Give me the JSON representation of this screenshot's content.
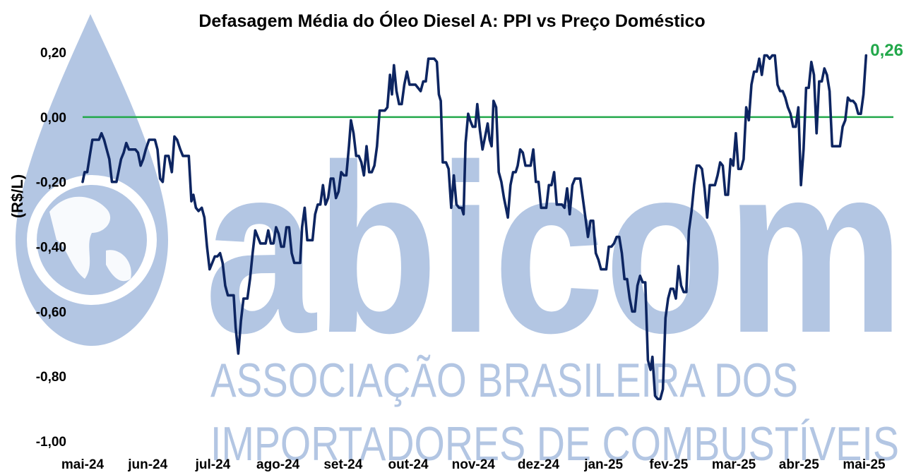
{
  "watermark": {
    "logo_text": "abicom",
    "line1": "ASSOCIAÇÃO BRASILEIRA DOS",
    "line2": "IMPORTADORES DE COMBUSTÍVEIS",
    "color": "#b3c6e3"
  },
  "chart_data": {
    "type": "line",
    "title": "Defasagem Média do Óleo Diesel A: PPI vs Preço Doméstico",
    "ylabel": "(R$/L)",
    "xlabel": "",
    "ylim": [
      -1.0,
      0.2
    ],
    "yticks": [
      0.2,
      0.0,
      -0.2,
      -0.4,
      -0.6,
      -0.8,
      -1.0
    ],
    "ytick_labels": [
      "0,20",
      "0,00",
      "-0,20",
      "-0,40",
      "-0,60",
      "-0,80",
      "-1,00"
    ],
    "xlim": [
      0,
      12.45
    ],
    "xtick_labels": [
      "mai-24",
      "jun-24",
      "jul-24",
      "ago-24",
      "set-24",
      "out-24",
      "nov-24",
      "dez-24",
      "jan-25",
      "fev-25",
      "mar-25",
      "abr-25",
      "mai-25"
    ],
    "grid": false,
    "legend": "none",
    "reference_line": {
      "y": 0.0,
      "color": "#22a84a"
    },
    "series_color": "#0d2561",
    "annotation": {
      "text": "0,26",
      "color": "#22a84a"
    },
    "series": [
      {
        "values": [
          [
            0.0,
            -0.2
          ],
          [
            0.03,
            -0.17
          ],
          [
            0.07,
            -0.17
          ],
          [
            0.11,
            -0.12
          ],
          [
            0.15,
            -0.07
          ],
          [
            0.21,
            -0.07
          ],
          [
            0.25,
            -0.07
          ],
          [
            0.29,
            -0.05
          ],
          [
            0.33,
            -0.07
          ],
          [
            0.37,
            -0.1
          ],
          [
            0.41,
            -0.13
          ],
          [
            0.45,
            -0.2
          ],
          [
            0.52,
            -0.2
          ],
          [
            0.59,
            -0.13
          ],
          [
            0.63,
            -0.11
          ],
          [
            0.67,
            -0.08
          ],
          [
            0.71,
            -0.1
          ],
          [
            0.75,
            -0.1
          ],
          [
            0.81,
            -0.1
          ],
          [
            0.85,
            -0.11
          ],
          [
            0.89,
            -0.15
          ],
          [
            0.93,
            -0.13
          ],
          [
            0.97,
            -0.1
          ],
          [
            1.02,
            -0.07
          ],
          [
            1.07,
            -0.07
          ],
          [
            1.11,
            -0.07
          ],
          [
            1.15,
            -0.1
          ],
          [
            1.19,
            -0.19
          ],
          [
            1.23,
            -0.2
          ],
          [
            1.27,
            -0.12
          ],
          [
            1.32,
            -0.12
          ],
          [
            1.37,
            -0.17
          ],
          [
            1.41,
            -0.06
          ],
          [
            1.45,
            -0.07
          ],
          [
            1.5,
            -0.1
          ],
          [
            1.54,
            -0.12
          ],
          [
            1.58,
            -0.12
          ],
          [
            1.63,
            -0.12
          ],
          [
            1.67,
            -0.26
          ],
          [
            1.7,
            -0.24
          ],
          [
            1.74,
            -0.28
          ],
          [
            1.78,
            -0.29
          ],
          [
            1.83,
            -0.28
          ],
          [
            1.87,
            -0.31
          ],
          [
            1.91,
            -0.4
          ],
          [
            1.95,
            -0.47
          ],
          [
            1.99,
            -0.45
          ],
          [
            2.03,
            -0.43
          ],
          [
            2.07,
            -0.43
          ],
          [
            2.11,
            -0.42
          ],
          [
            2.15,
            -0.45
          ],
          [
            2.19,
            -0.52
          ],
          [
            2.23,
            -0.55
          ],
          [
            2.27,
            -0.55
          ],
          [
            2.32,
            -0.55
          ],
          [
            2.35,
            -0.65
          ],
          [
            2.39,
            -0.73
          ],
          [
            2.43,
            -0.63
          ],
          [
            2.47,
            -0.56
          ],
          [
            2.53,
            -0.56
          ],
          [
            2.57,
            -0.5
          ],
          [
            2.61,
            -0.42
          ],
          [
            2.65,
            -0.35
          ],
          [
            2.69,
            -0.37
          ],
          [
            2.73,
            -0.39
          ],
          [
            2.77,
            -0.39
          ],
          [
            2.81,
            -0.39
          ],
          [
            2.85,
            -0.35
          ],
          [
            2.89,
            -0.39
          ],
          [
            2.93,
            -0.39
          ],
          [
            2.97,
            -0.34
          ],
          [
            3.01,
            -0.36
          ],
          [
            3.05,
            -0.4
          ],
          [
            3.09,
            -0.4
          ],
          [
            3.13,
            -0.34
          ],
          [
            3.17,
            -0.34
          ],
          [
            3.21,
            -0.42
          ],
          [
            3.25,
            -0.45
          ],
          [
            3.29,
            -0.45
          ],
          [
            3.34,
            -0.45
          ],
          [
            3.37,
            -0.34
          ],
          [
            3.41,
            -0.28
          ],
          [
            3.45,
            -0.38
          ],
          [
            3.49,
            -0.38
          ],
          [
            3.53,
            -0.38
          ],
          [
            3.57,
            -0.3
          ],
          [
            3.61,
            -0.27
          ],
          [
            3.65,
            -0.27
          ],
          [
            3.69,
            -0.21
          ],
          [
            3.73,
            -0.27
          ],
          [
            3.77,
            -0.25
          ],
          [
            3.81,
            -0.19
          ],
          [
            3.85,
            -0.19
          ],
          [
            3.89,
            -0.25
          ],
          [
            3.93,
            -0.23
          ],
          [
            3.97,
            -0.17
          ],
          [
            4.01,
            -0.18
          ],
          [
            4.05,
            -0.18
          ],
          [
            4.09,
            -0.09
          ],
          [
            4.12,
            -0.01
          ],
          [
            4.16,
            -0.05
          ],
          [
            4.2,
            -0.12
          ],
          [
            4.24,
            -0.12
          ],
          [
            4.28,
            -0.14
          ],
          [
            4.32,
            -0.18
          ],
          [
            4.36,
            -0.09
          ],
          [
            4.4,
            -0.17
          ],
          [
            4.44,
            -0.17
          ],
          [
            4.48,
            -0.15
          ],
          [
            4.52,
            -0.09
          ],
          [
            4.56,
            0.02
          ],
          [
            4.6,
            0.02
          ],
          [
            4.64,
            0.02
          ],
          [
            4.68,
            0.03
          ],
          [
            4.72,
            0.13
          ],
          [
            4.75,
            0.07
          ],
          [
            4.78,
            0.16
          ],
          [
            4.82,
            0.08
          ],
          [
            4.86,
            0.04
          ],
          [
            4.9,
            0.04
          ],
          [
            4.94,
            0.1
          ],
          [
            4.98,
            0.14
          ],
          [
            5.02,
            0.1
          ],
          [
            5.06,
            0.1
          ],
          [
            5.11,
            0.1
          ],
          [
            5.15,
            0.09
          ],
          [
            5.19,
            0.08
          ],
          [
            5.23,
            0.11
          ],
          [
            5.27,
            0.11
          ],
          [
            5.31,
            0.18
          ],
          [
            5.36,
            0.18
          ],
          [
            5.4,
            0.18
          ],
          [
            5.44,
            0.17
          ],
          [
            5.47,
            0.07
          ],
          [
            5.5,
            0.05
          ],
          [
            5.53,
            -0.14
          ],
          [
            5.58,
            -0.14
          ],
          [
            5.62,
            -0.16
          ],
          [
            5.66,
            -0.28
          ],
          [
            5.7,
            -0.18
          ],
          [
            5.74,
            -0.27
          ],
          [
            5.78,
            -0.28
          ],
          [
            5.82,
            -0.28
          ],
          [
            5.85,
            -0.3
          ],
          [
            5.88,
            -0.08
          ],
          [
            5.92,
            0.01
          ],
          [
            5.95,
            -0.01
          ],
          [
            5.99,
            -0.03
          ],
          [
            6.03,
            -0.03
          ],
          [
            6.06,
            0.04
          ],
          [
            6.1,
            -0.04
          ],
          [
            6.14,
            -0.1
          ],
          [
            6.18,
            -0.06
          ],
          [
            6.22,
            -0.02
          ],
          [
            6.25,
            -0.07
          ],
          [
            6.28,
            -0.09
          ],
          [
            6.31,
            0.05
          ],
          [
            6.35,
            0.03
          ],
          [
            6.39,
            -0.17
          ],
          [
            6.43,
            -0.2
          ],
          [
            6.47,
            -0.25
          ],
          [
            6.5,
            -0.28
          ],
          [
            6.53,
            -0.31
          ],
          [
            6.57,
            -0.21
          ],
          [
            6.61,
            -0.17
          ],
          [
            6.65,
            -0.17
          ],
          [
            6.68,
            -0.15
          ],
          [
            6.72,
            -0.1
          ],
          [
            6.76,
            -0.11
          ],
          [
            6.8,
            -0.15
          ],
          [
            6.84,
            -0.15
          ],
          [
            6.88,
            -0.15
          ],
          [
            6.92,
            -0.1
          ],
          [
            6.96,
            -0.2
          ],
          [
            7.0,
            -0.2
          ],
          [
            7.04,
            -0.28
          ],
          [
            7.08,
            -0.28
          ],
          [
            7.12,
            -0.28
          ],
          [
            7.16,
            -0.21
          ],
          [
            7.2,
            -0.21
          ],
          [
            7.24,
            -0.17
          ],
          [
            7.28,
            -0.27
          ],
          [
            7.32,
            -0.27
          ],
          [
            7.36,
            -0.27
          ],
          [
            7.4,
            -0.28
          ],
          [
            7.44,
            -0.22
          ],
          [
            7.48,
            -0.3
          ],
          [
            7.52,
            -0.21
          ],
          [
            7.56,
            -0.19
          ],
          [
            7.6,
            -0.19
          ],
          [
            7.64,
            -0.19
          ],
          [
            7.68,
            -0.25
          ],
          [
            7.72,
            -0.31
          ],
          [
            7.76,
            -0.37
          ],
          [
            7.8,
            -0.32
          ],
          [
            7.84,
            -0.32
          ],
          [
            7.88,
            -0.42
          ],
          [
            7.92,
            -0.44
          ],
          [
            7.96,
            -0.47
          ],
          [
            8.0,
            -0.47
          ],
          [
            8.04,
            -0.47
          ],
          [
            8.08,
            -0.4
          ],
          [
            8.12,
            -0.4
          ],
          [
            8.16,
            -0.39
          ],
          [
            8.2,
            -0.37
          ],
          [
            8.24,
            -0.37
          ],
          [
            8.28,
            -0.42
          ],
          [
            8.32,
            -0.5
          ],
          [
            8.36,
            -0.5
          ],
          [
            8.4,
            -0.56
          ],
          [
            8.44,
            -0.6
          ],
          [
            8.48,
            -0.6
          ],
          [
            8.52,
            -0.52
          ],
          [
            8.56,
            -0.49
          ],
          [
            8.6,
            -0.51
          ],
          [
            8.64,
            -0.51
          ],
          [
            8.68,
            -0.75
          ],
          [
            8.72,
            -0.78
          ],
          [
            8.75,
            -0.74
          ],
          [
            8.79,
            -0.86
          ],
          [
            8.83,
            -0.87
          ],
          [
            8.87,
            -0.87
          ],
          [
            8.91,
            -0.84
          ],
          [
            8.95,
            -0.62
          ],
          [
            8.99,
            -0.56
          ],
          [
            9.03,
            -0.53
          ],
          [
            9.07,
            -0.53
          ],
          [
            9.11,
            -0.56
          ],
          [
            9.15,
            -0.46
          ],
          [
            9.19,
            -0.52
          ],
          [
            9.23,
            -0.54
          ],
          [
            9.27,
            -0.54
          ],
          [
            9.31,
            -0.35
          ],
          [
            9.35,
            -0.29
          ],
          [
            9.39,
            -0.21
          ],
          [
            9.43,
            -0.15
          ],
          [
            9.47,
            -0.15
          ],
          [
            9.51,
            -0.16
          ],
          [
            9.55,
            -0.22
          ],
          [
            9.59,
            -0.31
          ],
          [
            9.63,
            -0.21
          ],
          [
            9.67,
            -0.21
          ],
          [
            9.71,
            -0.21
          ],
          [
            9.75,
            -0.18
          ],
          [
            9.79,
            -0.14
          ],
          [
            9.83,
            -0.15
          ],
          [
            9.87,
            -0.24
          ],
          [
            9.91,
            -0.24
          ],
          [
            9.95,
            -0.13
          ],
          [
            9.99,
            -0.15
          ],
          [
            10.03,
            -0.05
          ],
          [
            10.07,
            -0.16
          ],
          [
            10.11,
            -0.16
          ],
          [
            10.15,
            -0.13
          ],
          [
            10.19,
            0.03
          ],
          [
            10.23,
            -0.01
          ],
          [
            10.27,
            0.1
          ],
          [
            10.31,
            0.14
          ],
          [
            10.35,
            0.14
          ],
          [
            10.39,
            0.18
          ],
          [
            10.43,
            0.13
          ],
          [
            10.47,
            0.19
          ],
          [
            10.51,
            0.19
          ],
          [
            10.55,
            0.18
          ],
          [
            10.59,
            0.19
          ],
          [
            10.63,
            0.19
          ],
          [
            10.67,
            0.1
          ],
          [
            10.71,
            0.08
          ],
          [
            10.75,
            0.08
          ],
          [
            10.79,
            0.06
          ],
          [
            10.83,
            0.03
          ],
          [
            10.87,
            0.01
          ],
          [
            10.91,
            -0.03
          ],
          [
            10.95,
            -0.03
          ],
          [
            10.99,
            0.03
          ],
          [
            11.03,
            -0.21
          ],
          [
            11.07,
            -0.1
          ],
          [
            11.11,
            0.09
          ],
          [
            11.15,
            0.09
          ],
          [
            11.19,
            0.17
          ],
          [
            11.23,
            0.13
          ],
          [
            11.27,
            -0.05
          ],
          [
            11.31,
            0.11
          ],
          [
            11.35,
            0.11
          ],
          [
            11.39,
            0.15
          ],
          [
            11.43,
            0.13
          ],
          [
            11.47,
            0.08
          ],
          [
            11.51,
            -0.09
          ],
          [
            11.55,
            -0.09
          ],
          [
            11.59,
            -0.09
          ],
          [
            11.63,
            -0.09
          ],
          [
            11.67,
            -0.03
          ],
          [
            11.71,
            -0.01
          ],
          [
            11.75,
            0.06
          ],
          [
            11.79,
            0.05
          ],
          [
            11.83,
            0.05
          ],
          [
            11.87,
            0.04
          ],
          [
            11.91,
            0.01
          ],
          [
            11.95,
            0.01
          ],
          [
            11.99,
            0.07
          ],
          [
            12.03,
            0.19
          ]
        ]
      }
    ]
  }
}
